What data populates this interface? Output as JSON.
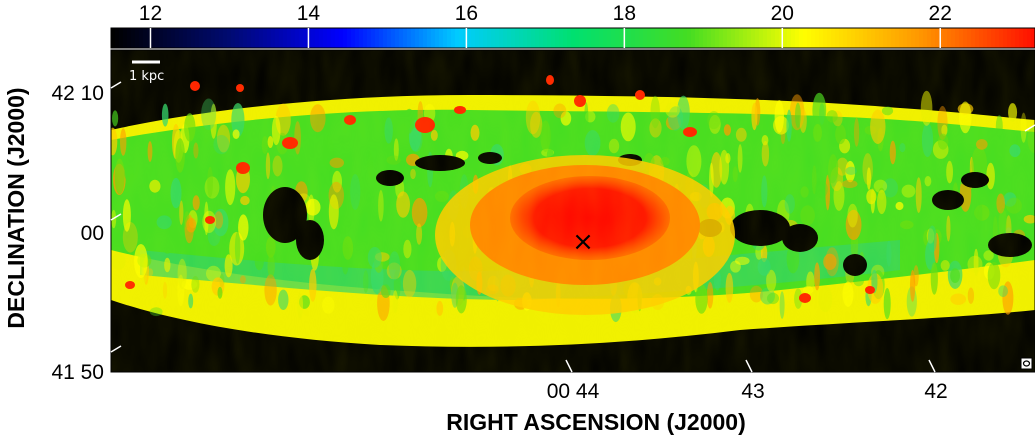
{
  "chart_data": {
    "type": "heatmap",
    "colorbar": {
      "ticks": [
        "12",
        "14",
        "16",
        "18",
        "20",
        "22"
      ],
      "range": [
        11.5,
        23.2
      ],
      "colors": [
        "#000000",
        "#000a70",
        "#0000ff",
        "#00ccff",
        "#00e070",
        "#44dd22",
        "#ffff00",
        "#ff9900",
        "#ff1100"
      ]
    },
    "xlabel": "RIGHT ASCENSION (J2000)",
    "ylabel": "DECLINATION (J2000)",
    "xticks": [
      "00 44",
      "43",
      "42"
    ],
    "yticks": [
      "42 10",
      "00",
      "41 50"
    ],
    "scalebar_label": "1 kpc",
    "center_marker": "×",
    "emission_map": {
      "description_values": "column density map; nucleus peak above 22, disk mostly 17–20, holes below 12",
      "nucleus_level": 22.5,
      "disk_level": 18.5,
      "background_level": 11.5
    }
  }
}
